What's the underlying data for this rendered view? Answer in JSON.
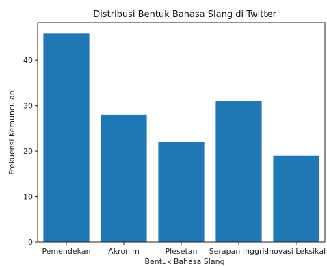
{
  "chart_data": {
    "type": "bar",
    "title": "Distribusi Bentuk Bahasa Slang di Twitter",
    "xlabel": "Bentuk Bahasa Slang",
    "ylabel": "Frekuensi Kemunculan",
    "categories": [
      "Pemendekan",
      "Akronim",
      "Plesetan",
      "Serapan Inggris",
      "Inovasi Leksikal"
    ],
    "values": [
      46,
      28,
      22,
      31,
      19
    ],
    "ylim": [
      0,
      48.3
    ],
    "yticks": [
      0,
      10,
      20,
      30,
      40
    ],
    "bar_color": "#1f77b4",
    "grid": false,
    "legend": "none"
  }
}
